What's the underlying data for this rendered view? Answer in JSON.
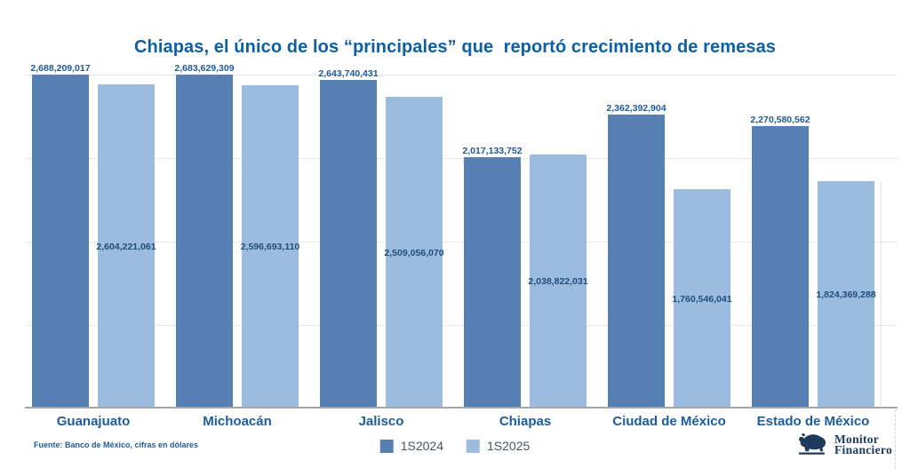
{
  "title": "Chiapas, el único de los “principales” que  reportó crecimiento de remesas",
  "footer": {
    "source": "Fuente: Banco de México, cifras en dólares"
  },
  "legend": {
    "items": [
      {
        "label": "1S2024",
        "color": "#567fb4"
      },
      {
        "label": "1S2025",
        "color": "#9bbcdf"
      }
    ]
  },
  "logo": {
    "name": "Monitor Financiero",
    "line1": "Monitor",
    "line2": "Financiero",
    "icon": "bull-icon",
    "color": "#1e3a5c"
  },
  "colors": {
    "title": "#0f5fa5",
    "series_dark": "#567fb4",
    "series_light": "#9bbcdf",
    "label_outside": "#1d5a9a",
    "label_inside": "#1f4e79",
    "axis_label": "#1d5c9e",
    "baseline": "#a6a6a6",
    "gridline": "#e9e9e9",
    "legend_text": "#44546a"
  },
  "chart_data": {
    "type": "bar",
    "title": "Chiapas, el único de los “principales” que  reportó crecimiento de remesas",
    "categories": [
      "Guanajuato",
      "Michoacán",
      "Jalisco",
      "Chiapas",
      "Ciudad de México",
      "Estado de México"
    ],
    "series": [
      {
        "name": "1S2024",
        "color": "#567fb4",
        "label_position": "outside-top",
        "values": [
          2688209017,
          2683629309,
          2643740431,
          2017133752,
          2362392904,
          2270580562
        ]
      },
      {
        "name": "1S2025",
        "color": "#9bbcdf",
        "label_position": "inside-center",
        "values": [
          2604221061,
          2596693110,
          2509056070,
          2038822031,
          1760546041,
          1824369288
        ]
      }
    ],
    "unit": "dólares",
    "xlabel": "",
    "ylabel": "",
    "ylim": [
      0,
      2700000000
    ],
    "grid": true,
    "gridline_count": 4,
    "legend_position": "bottom-center",
    "y_axis_visible": false
  }
}
